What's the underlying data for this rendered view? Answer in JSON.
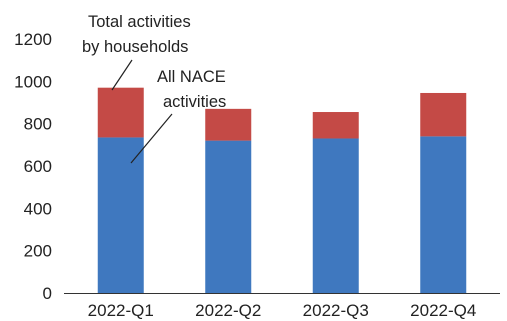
{
  "chart_data": {
    "type": "bar",
    "stacked": true,
    "categories": [
      "2022-Q1",
      "2022-Q2",
      "2022-Q3",
      "2022-Q4"
    ],
    "series": [
      {
        "key": "all_nace",
        "values": [
          735,
          720,
          730,
          740
        ],
        "color": "#3f78bf"
      },
      {
        "key": "households",
        "values": [
          235,
          150,
          125,
          205
        ],
        "color": "#c44a46"
      }
    ],
    "ylim": [
      0,
      1200
    ],
    "yticks": [
      "0",
      "200",
      "400",
      "600",
      "800",
      "1000",
      "1200"
    ],
    "grid": false,
    "annotations": {
      "households_line1": "Total activities",
      "households_line2": "by households",
      "nace_line1": "All NACE",
      "nace_line2": "activities"
    }
  }
}
